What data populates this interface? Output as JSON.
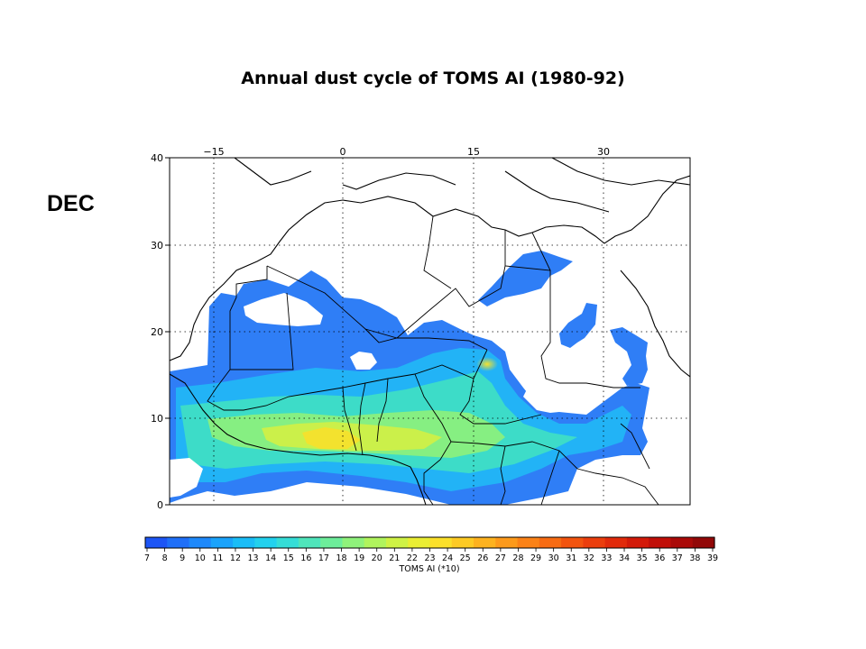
{
  "title": "Annual dust cycle of TOMS AI (1980-92)",
  "month": "DEC",
  "map": {
    "lon_ticks": [
      "−15",
      "0",
      "15",
      "30"
    ],
    "lat_ticks": [
      "40",
      "30",
      "20",
      "10",
      "0"
    ],
    "lon_range": [
      -30,
      40
    ],
    "lat_range": [
      0,
      40
    ],
    "grid": "dotted"
  },
  "colorbar": {
    "label": "TOMS AI (*10)",
    "ticks": [
      "7",
      "8",
      "9",
      "10",
      "11",
      "12",
      "13",
      "14",
      "15",
      "16",
      "17",
      "18",
      "19",
      "20",
      "21",
      "22",
      "23",
      "24",
      "25",
      "26",
      "27",
      "28",
      "29",
      "30",
      "31",
      "32",
      "33",
      "34",
      "35",
      "36",
      "37",
      "38",
      "39"
    ],
    "colors": [
      "#1d55f5",
      "#1f6ff8",
      "#1e89fb",
      "#1aa3fb",
      "#1abdf7",
      "#22d1ee",
      "#35ddd7",
      "#4fe5bb",
      "#6ded9a",
      "#8ff27b",
      "#b0f45d",
      "#cff245",
      "#eaee33",
      "#fbe02a",
      "#fdca24",
      "#fdb21f",
      "#fd9a1b",
      "#fb8217",
      "#f76b13",
      "#f2540f",
      "#eb3e0d",
      "#e12a0b",
      "#d31a09",
      "#c10f08",
      "#aa0a08",
      "#920808"
    ],
    "color_names": "blue-to-dark-red rainbow"
  }
}
